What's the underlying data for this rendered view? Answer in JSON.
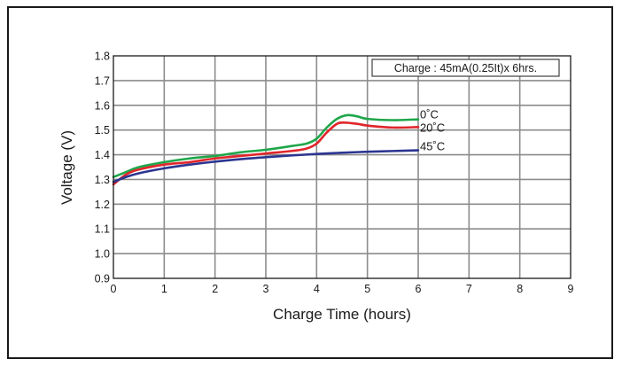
{
  "chart_data": {
    "type": "line",
    "title": "",
    "annotation": "Charge : 45mA(0.25It)x 6hrs.",
    "xlabel": "Charge Time (hours)",
    "ylabel": "Voltage (V)",
    "xlim": [
      0,
      9
    ],
    "ylim": [
      0.9,
      1.8
    ],
    "x_ticks": [
      0,
      1,
      2,
      3,
      4,
      5,
      6,
      7,
      8,
      9
    ],
    "y_ticks": [
      0.9,
      1.0,
      1.1,
      1.2,
      1.3,
      1.4,
      1.5,
      1.6,
      1.7,
      1.8
    ],
    "grid": true,
    "series": [
      {
        "name": "0˚C",
        "color": "#1fa64a",
        "x": [
          0,
          0.25,
          0.5,
          1,
          1.5,
          2,
          2.5,
          3,
          3.5,
          3.8,
          4,
          4.2,
          4.4,
          4.6,
          4.8,
          5,
          5.5,
          6
        ],
        "values": [
          1.31,
          1.33,
          1.35,
          1.37,
          1.385,
          1.395,
          1.41,
          1.42,
          1.435,
          1.445,
          1.465,
          1.51,
          1.545,
          1.56,
          1.555,
          1.545,
          1.54,
          1.543
        ]
      },
      {
        "name": "20˚C",
        "color": "#e0262b",
        "x": [
          0,
          0.25,
          0.5,
          1,
          1.5,
          2,
          2.5,
          3,
          3.5,
          3.8,
          4,
          4.2,
          4.4,
          4.55,
          4.8,
          5,
          5.5,
          6
        ],
        "values": [
          1.28,
          1.32,
          1.34,
          1.36,
          1.37,
          1.385,
          1.395,
          1.405,
          1.415,
          1.425,
          1.445,
          1.49,
          1.525,
          1.53,
          1.525,
          1.518,
          1.51,
          1.512
        ]
      },
      {
        "name": "45˚C",
        "color": "#2b3590",
        "x": [
          0,
          0.25,
          0.5,
          1,
          1.5,
          2,
          2.5,
          3,
          3.5,
          4,
          4.5,
          5,
          5.5,
          6
        ],
        "values": [
          1.29,
          1.31,
          1.325,
          1.345,
          1.36,
          1.372,
          1.382,
          1.39,
          1.397,
          1.403,
          1.408,
          1.412,
          1.415,
          1.418
        ]
      }
    ]
  }
}
